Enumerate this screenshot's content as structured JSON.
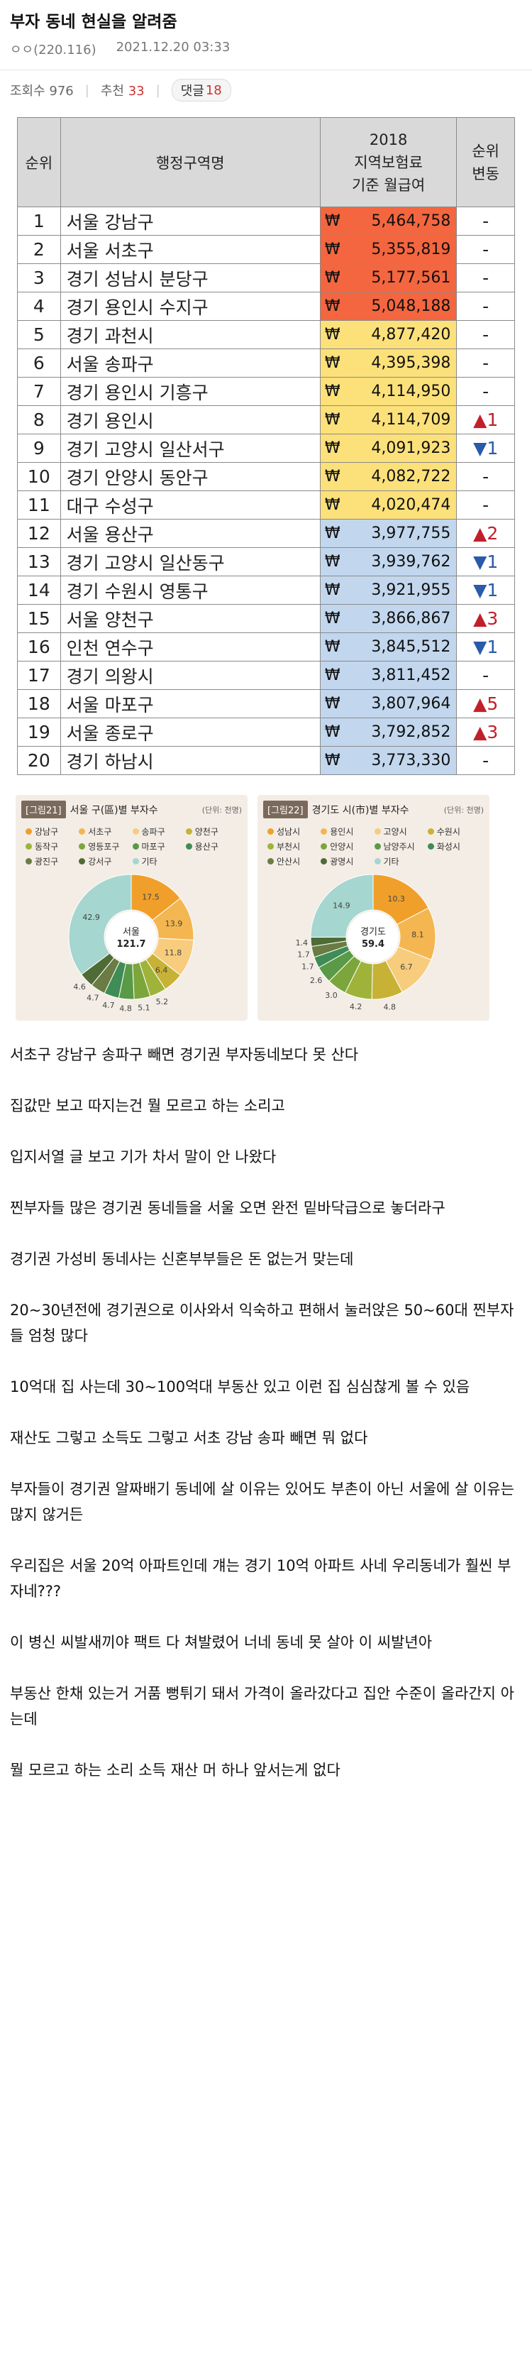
{
  "post": {
    "title": "부자 동네 현실을 알려줌",
    "author": "ㅇㅇ(220.116)",
    "datetime": "2021.12.20 03:33",
    "views_label": "조회수 976",
    "recommend_label": "추천",
    "recommend_count": "33",
    "comments_label": "댓글",
    "comments_count": "18"
  },
  "table": {
    "headers": {
      "rank": "순위",
      "region": "행정구역명",
      "amount_line1": "2018",
      "amount_line2": "지역보험료",
      "amount_line3": "기준 월급여",
      "change_line1": "순위",
      "change_line2": "변동"
    },
    "currency": "₩",
    "colors": {
      "red": "#f4663f",
      "yellow": "#fce17a",
      "blue": "#c2d7ee",
      "up": "#c0202a",
      "down": "#2a5aa8"
    },
    "rows": [
      {
        "rank": "1",
        "region": "서울 강남구",
        "amount": "5,464,758",
        "tier": "red",
        "change": "-",
        "dir": "none"
      },
      {
        "rank": "2",
        "region": "서울 서초구",
        "amount": "5,355,819",
        "tier": "red",
        "change": "-",
        "dir": "none"
      },
      {
        "rank": "3",
        "region": "경기 성남시 분당구",
        "amount": "5,177,561",
        "tier": "red",
        "change": "-",
        "dir": "none"
      },
      {
        "rank": "4",
        "region": "경기 용인시 수지구",
        "amount": "5,048,188",
        "tier": "red",
        "change": "-",
        "dir": "none"
      },
      {
        "rank": "5",
        "region": "경기 과천시",
        "amount": "4,877,420",
        "tier": "yellow",
        "change": "-",
        "dir": "none"
      },
      {
        "rank": "6",
        "region": "서울 송파구",
        "amount": "4,395,398",
        "tier": "yellow",
        "change": "-",
        "dir": "none"
      },
      {
        "rank": "7",
        "region": "경기 용인시 기흥구",
        "amount": "4,114,950",
        "tier": "yellow",
        "change": "-",
        "dir": "none"
      },
      {
        "rank": "8",
        "region": "경기 용인시",
        "amount": "4,114,709",
        "tier": "yellow",
        "change": "▲1",
        "dir": "up"
      },
      {
        "rank": "9",
        "region": "경기 고양시 일산서구",
        "amount": "4,091,923",
        "tier": "yellow",
        "change": "▼1",
        "dir": "down"
      },
      {
        "rank": "10",
        "region": "경기 안양시 동안구",
        "amount": "4,082,722",
        "tier": "yellow",
        "change": "-",
        "dir": "none"
      },
      {
        "rank": "11",
        "region": "대구 수성구",
        "amount": "4,020,474",
        "tier": "yellow",
        "change": "-",
        "dir": "none"
      },
      {
        "rank": "12",
        "region": "서울 용산구",
        "amount": "3,977,755",
        "tier": "blue",
        "change": "▲2",
        "dir": "up"
      },
      {
        "rank": "13",
        "region": "경기 고양시 일산동구",
        "amount": "3,939,762",
        "tier": "blue",
        "change": "▼1",
        "dir": "down"
      },
      {
        "rank": "14",
        "region": "경기 수원시 영통구",
        "amount": "3,921,955",
        "tier": "blue",
        "change": "▼1",
        "dir": "down"
      },
      {
        "rank": "15",
        "region": "서울 양천구",
        "amount": "3,866,867",
        "tier": "blue",
        "change": "▲3",
        "dir": "up"
      },
      {
        "rank": "16",
        "region": "인천 연수구",
        "amount": "3,845,512",
        "tier": "blue",
        "change": "▼1",
        "dir": "down"
      },
      {
        "rank": "17",
        "region": "경기 의왕시",
        "amount": "3,811,452",
        "tier": "blue",
        "change": "-",
        "dir": "none"
      },
      {
        "rank": "18",
        "region": "서울 마포구",
        "amount": "3,807,964",
        "tier": "blue",
        "change": "▲5",
        "dir": "up"
      },
      {
        "rank": "19",
        "region": "서울 종로구",
        "amount": "3,792,852",
        "tier": "blue",
        "change": "▲3",
        "dir": "up"
      },
      {
        "rank": "20",
        "region": "경기 하남시",
        "amount": "3,773,330",
        "tier": "blue",
        "change": "-",
        "dir": "none"
      }
    ]
  },
  "chart_data": [
    {
      "type": "pie",
      "tag": "[그림21]",
      "title": "서울 구(區)별 부자수",
      "unit": "(단위: 천명)",
      "center_label": "서울",
      "center_value": "121.7",
      "legend": [
        "강남구",
        "서초구",
        "송파구",
        "양천구",
        "동작구",
        "영등포구",
        "마포구",
        "용산구",
        "광진구",
        "강서구",
        "기타"
      ],
      "colors": [
        "#f0a02a",
        "#f4b650",
        "#f7cc7c",
        "#c8b236",
        "#9fb33a",
        "#7ca63c",
        "#5a9a46",
        "#3f8c55",
        "#6a7c44",
        "#4f6b36",
        "#a5d6cf"
      ],
      "values": [
        17.5,
        13.9,
        11.8,
        6.4,
        5.2,
        5.1,
        4.8,
        4.7,
        4.7,
        4.6,
        42.9
      ],
      "value_labels": [
        "17.5",
        "13.9",
        "11.8",
        "6.4",
        "5.2",
        "5.1",
        "4.8",
        "4.7",
        "4.7",
        "4.6",
        "42.9"
      ]
    },
    {
      "type": "pie",
      "tag": "[그림22]",
      "title": "경기도 시(市)별 부자수",
      "unit": "(단위: 천명)",
      "center_label": "경기도",
      "center_value": "59.4",
      "legend": [
        "성남시",
        "용인시",
        "고양시",
        "수원시",
        "부천시",
        "안양시",
        "남양주시",
        "화성시",
        "안산시",
        "광명시",
        "기타"
      ],
      "colors": [
        "#f0a02a",
        "#f4b650",
        "#f7cc7c",
        "#c8b236",
        "#9fb33a",
        "#7ca63c",
        "#5a9a46",
        "#3f8c55",
        "#6a7c44",
        "#4f6b36",
        "#a5d6cf"
      ],
      "values": [
        10.3,
        8.1,
        6.7,
        4.8,
        4.2,
        3.0,
        2.6,
        1.7,
        1.7,
        1.4,
        14.9
      ],
      "value_labels": [
        "10.3",
        "8.1",
        "6.7",
        "4.8",
        "4.2",
        "3.0",
        "2.6",
        "1.7",
        "1.7",
        "1.4",
        "14.9"
      ]
    }
  ],
  "paragraphs": [
    "서초구 강남구 송파구 빼면 경기권 부자동네보다 못 산다",
    "집값만 보고 따지는건 뭘 모르고 하는 소리고",
    "입지서열 글 보고 기가 차서 말이 안 나왔다",
    "찐부자들 많은 경기권 동네들을 서울 오면 완전 밑바닥급으로 놓더라구",
    "경기권 가성비 동네사는 신혼부부들은 돈 없는거 맞는데",
    "20~30년전에 경기권으로 이사와서 익숙하고 편해서 눌러앉은 50~60대 찐부자들 엄청 많다",
    "10억대 집 사는데 30~100억대 부동산 있고 이런 집 심심찮게 볼 수 있음",
    "재산도 그렇고 소득도 그렇고 서초 강남 송파 빼면 뭐 없다",
    "부자들이 경기권 알짜배기 동네에 살 이유는 있어도 부촌이 아닌 서울에 살 이유는 많지 않거든",
    "우리집은 서울 20억 아파트인데 걔는 경기 10억 아파트 사네 우리동네가 훨씬 부자네???",
    "이 병신 씨발새끼야 팩트 다 쳐발렸어 너네 동네 못 살아 이 씨발년아",
    "부동산 한채 있는거 거품 뻥튀기 돼서 가격이 올라갔다고 집안 수준이 올라간지 아는데",
    "뭘 모르고 하는 소리 소득 재산 머 하나 앞서는게 없다"
  ]
}
